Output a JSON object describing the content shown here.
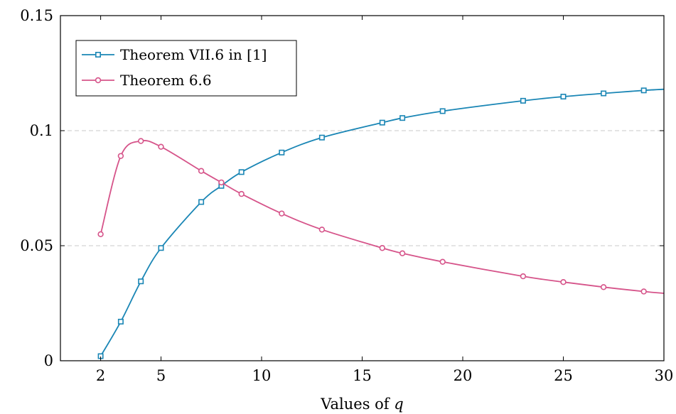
{
  "chart_data": {
    "type": "line",
    "xlabel": "Values of q",
    "ylabel": "",
    "xlim": [
      0,
      30
    ],
    "ylim": [
      0,
      0.15
    ],
    "xticks": [
      2,
      5,
      10,
      15,
      20,
      25,
      30
    ],
    "xtick_labels": [
      "2",
      "5",
      "10",
      "15",
      "20",
      "25",
      "30"
    ],
    "yticks": [
      0,
      0.05,
      0.1,
      0.15
    ],
    "ytick_labels": [
      "0",
      "0.05",
      "0.1",
      "0.15"
    ],
    "grid": "horizontal dashed at 0.05 and 0.1",
    "legend_position": "top-left",
    "series": [
      {
        "name": "Theorem VII.6 in [1]",
        "color": "#1a86b5",
        "marker": "square",
        "points": [
          {
            "x": 2,
            "y": 0.002
          },
          {
            "x": 3,
            "y": 0.017
          },
          {
            "x": 4,
            "y": 0.0345
          },
          {
            "x": 5,
            "y": 0.049
          },
          {
            "x": 7,
            "y": 0.069
          },
          {
            "x": 8,
            "y": 0.076
          },
          {
            "x": 9,
            "y": 0.082
          },
          {
            "x": 11,
            "y": 0.0905
          },
          {
            "x": 13,
            "y": 0.097
          },
          {
            "x": 16,
            "y": 0.1035
          },
          {
            "x": 17,
            "y": 0.1055
          },
          {
            "x": 19,
            "y": 0.1085
          },
          {
            "x": 23,
            "y": 0.113
          },
          {
            "x": 25,
            "y": 0.1148
          },
          {
            "x": 27,
            "y": 0.1162
          },
          {
            "x": 29,
            "y": 0.1175
          },
          {
            "x": 30,
            "y": 0.118
          }
        ]
      },
      {
        "name": "Theorem 6.6",
        "color": "#d6548a",
        "marker": "circle",
        "points": [
          {
            "x": 2,
            "y": 0.055
          },
          {
            "x": 3,
            "y": 0.089
          },
          {
            "x": 4,
            "y": 0.0955
          },
          {
            "x": 5,
            "y": 0.093
          },
          {
            "x": 7,
            "y": 0.0825
          },
          {
            "x": 8,
            "y": 0.0775
          },
          {
            "x": 9,
            "y": 0.0725
          },
          {
            "x": 11,
            "y": 0.064
          },
          {
            "x": 13,
            "y": 0.057
          },
          {
            "x": 16,
            "y": 0.049
          },
          {
            "x": 17,
            "y": 0.0467
          },
          {
            "x": 19,
            "y": 0.043
          },
          {
            "x": 23,
            "y": 0.0367
          },
          {
            "x": 25,
            "y": 0.0342
          },
          {
            "x": 27,
            "y": 0.032
          },
          {
            "x": 29,
            "y": 0.0301
          },
          {
            "x": 30,
            "y": 0.0293
          }
        ]
      }
    ]
  }
}
